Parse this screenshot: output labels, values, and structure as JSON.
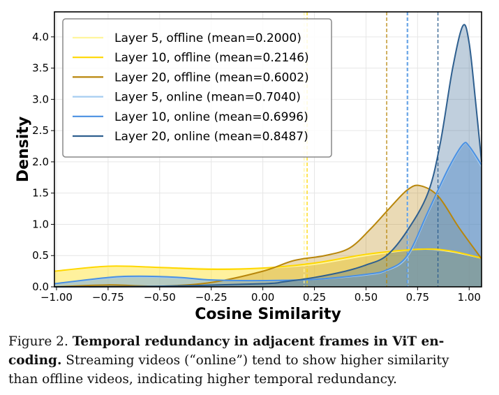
{
  "chart_data": {
    "type": "line",
    "subtype": "kde-density-filled",
    "xlabel": "Cosine Similarity",
    "ylabel": "Density",
    "xlim": [
      -1.01,
      1.06
    ],
    "ylim": [
      0,
      4.4
    ],
    "xticks": [
      "-1.00",
      "-0.75",
      "-0.50",
      "-0.25",
      "0.00",
      "0.25",
      "0.50",
      "0.75",
      "1.00"
    ],
    "xtick_values": [
      -1.0,
      -0.75,
      -0.5,
      -0.25,
      0.0,
      0.25,
      0.5,
      0.75,
      1.0
    ],
    "yticks": [
      "0.0",
      "0.5",
      "1.0",
      "1.5",
      "2.0",
      "2.5",
      "3.0",
      "3.5",
      "4.0"
    ],
    "ytick_values": [
      0,
      0.5,
      1.0,
      1.5,
      2.0,
      2.5,
      3.0,
      3.5,
      4.0
    ],
    "grid": true,
    "legend_position": "top-left",
    "series": [
      {
        "name": "Layer 5, offline (mean=0.2000)",
        "color": "#fff59d",
        "mean": 0.2,
        "x": [
          -1.01,
          -0.75,
          -0.5,
          -0.25,
          0,
          0.25,
          0.5,
          0.75,
          0.9,
          1.06
        ],
        "y": [
          0.25,
          0.32,
          0.31,
          0.29,
          0.3,
          0.36,
          0.5,
          0.6,
          0.57,
          0.46
        ]
      },
      {
        "name": "Layer 10, offline (mean=0.2146)",
        "color": "#ffd700",
        "mean": 0.2146,
        "x": [
          -1.01,
          -0.75,
          -0.5,
          -0.25,
          0,
          0.25,
          0.5,
          0.75,
          0.9,
          1.06
        ],
        "y": [
          0.25,
          0.33,
          0.31,
          0.28,
          0.3,
          0.38,
          0.52,
          0.6,
          0.58,
          0.46
        ]
      },
      {
        "name": "Layer 20, offline (mean=0.6002)",
        "color": "#b8860b",
        "mean": 0.6002,
        "x": [
          -1.01,
          -0.75,
          -0.5,
          -0.25,
          0,
          0.15,
          0.3,
          0.42,
          0.52,
          0.62,
          0.7,
          0.76,
          0.85,
          0.95,
          1.06
        ],
        "y": [
          0.0,
          0.03,
          0.01,
          0.07,
          0.25,
          0.42,
          0.5,
          0.62,
          0.92,
          1.28,
          1.55,
          1.62,
          1.45,
          0.95,
          0.45
        ]
      },
      {
        "name": "Layer 5, online (mean=0.7040)",
        "color": "#a6cdf0",
        "mean": 0.704,
        "x": [
          -1.01,
          -0.75,
          -0.6,
          -0.4,
          -0.25,
          0,
          0.25,
          0.5,
          0.6,
          0.7,
          0.8,
          0.9,
          0.97,
          1.0,
          1.06
        ],
        "y": [
          0.05,
          0.14,
          0.16,
          0.14,
          0.11,
          0.1,
          0.12,
          0.19,
          0.26,
          0.48,
          1.18,
          1.88,
          2.27,
          2.24,
          1.92
        ]
      },
      {
        "name": "Layer 10, online (mean=0.6996)",
        "color": "#4a90e2",
        "mean": 0.6996,
        "x": [
          -1.01,
          -0.75,
          -0.6,
          -0.4,
          -0.25,
          0,
          0.25,
          0.5,
          0.6,
          0.7,
          0.8,
          0.9,
          0.97,
          1.0,
          1.06
        ],
        "y": [
          0.05,
          0.15,
          0.17,
          0.15,
          0.11,
          0.1,
          0.12,
          0.2,
          0.27,
          0.5,
          1.2,
          1.9,
          2.28,
          2.25,
          1.95
        ]
      },
      {
        "name": "Layer 20, online (mean=0.8487)",
        "color": "#2e5f8f",
        "mean": 0.8487,
        "x": [
          -1.01,
          -0.5,
          0,
          0.1,
          0.25,
          0.4,
          0.5,
          0.6,
          0.7,
          0.8,
          0.86,
          0.92,
          0.97,
          1.0,
          1.03,
          1.06
        ],
        "y": [
          0.0,
          0.01,
          0.05,
          0.08,
          0.15,
          0.25,
          0.35,
          0.5,
          0.9,
          1.5,
          2.3,
          3.5,
          4.18,
          3.9,
          3.0,
          2.0
        ]
      }
    ]
  },
  "caption": {
    "label": "Figure 2.",
    "title_line1": "Temporal redundancy in adjacent frames in ViT en-",
    "title_line2": "coding.",
    "body_line2": "Streaming videos (“online”) tend to show higher similarity",
    "body_line3": "than offline videos, indicating higher temporal redundancy."
  }
}
